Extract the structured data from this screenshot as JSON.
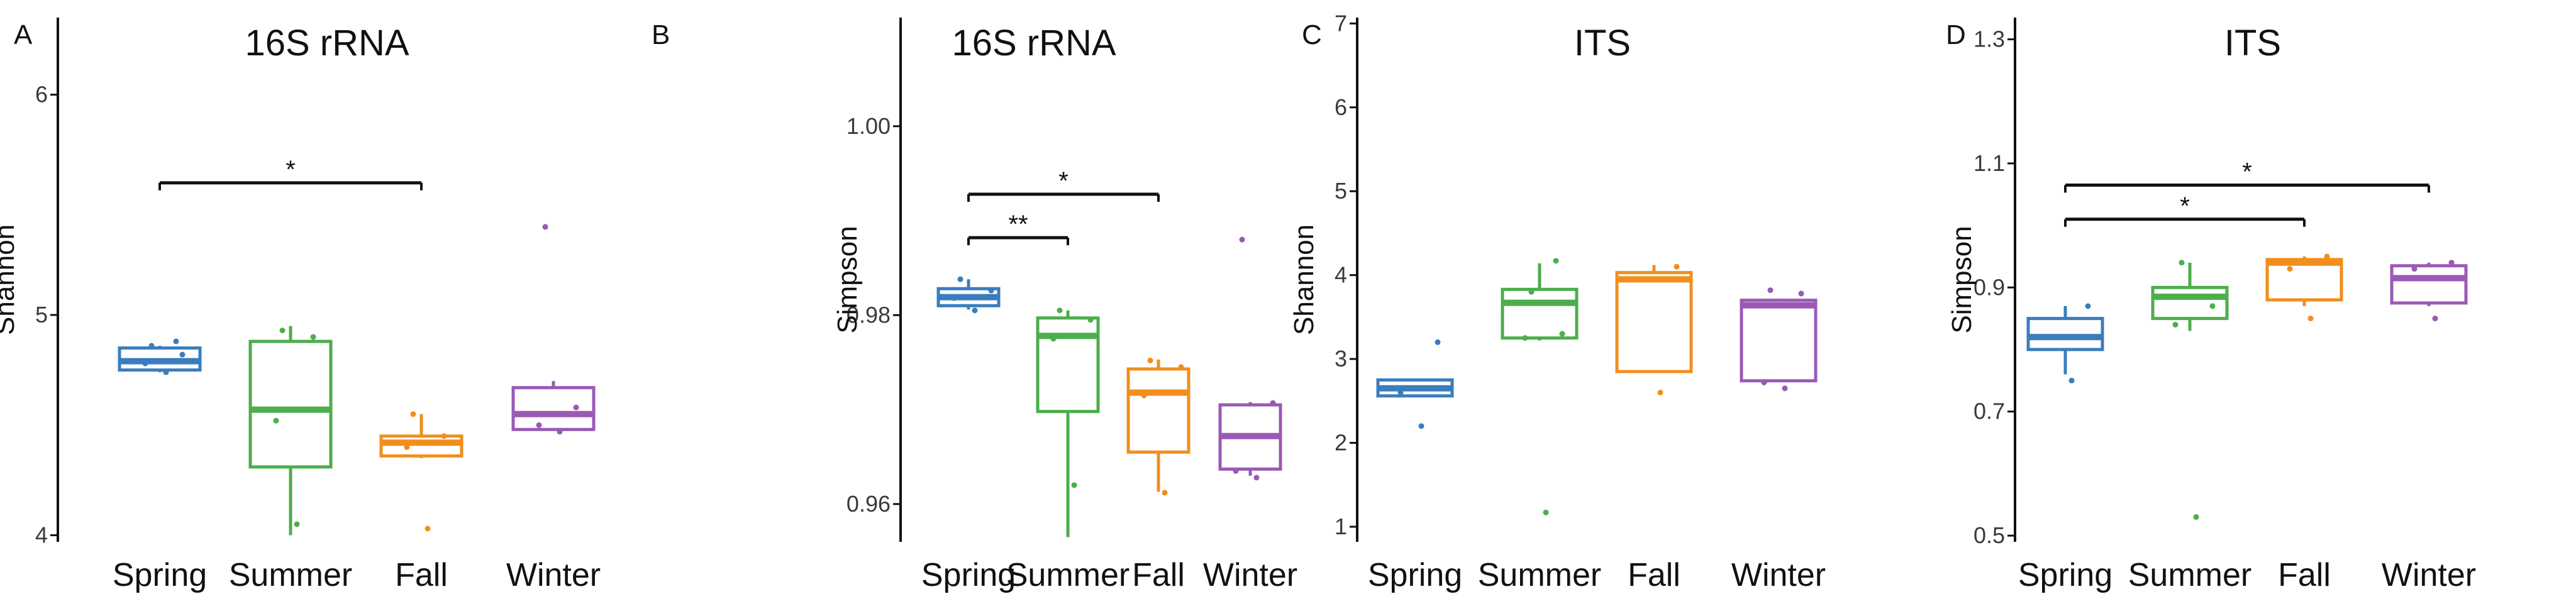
{
  "chart_data": [
    {
      "panel": "A",
      "type": "box",
      "title": "16S rRNA",
      "ylabel": "Shannon",
      "xlabel": "",
      "ylim": [
        3.97,
        6.35
      ],
      "yticks": [
        "4",
        "5",
        "6"
      ],
      "categories": [
        "Spring",
        "Summer",
        "Fall",
        "Winter"
      ],
      "colors": [
        "#3a7dbd",
        "#4cae4c",
        "#f28e1c",
        "#9b59b6"
      ],
      "boxes": [
        {
          "category": "Spring",
          "min": 4.74,
          "q1": 4.75,
          "median": 4.79,
          "q3": 4.85,
          "max": 4.86,
          "points": [
            4.74,
            4.78,
            4.82,
            4.86,
            4.88
          ]
        },
        {
          "category": "Summer",
          "min": 4.0,
          "q1": 4.31,
          "median": 4.57,
          "q3": 4.88,
          "max": 4.95,
          "points": [
            4.05,
            4.52,
            4.9,
            4.93
          ]
        },
        {
          "category": "Fall",
          "min": 4.35,
          "q1": 4.36,
          "median": 4.42,
          "q3": 4.45,
          "max": 4.55,
          "points": [
            4.03,
            4.4,
            4.45,
            4.55
          ]
        },
        {
          "category": "Winter",
          "min": 4.48,
          "q1": 4.48,
          "median": 4.55,
          "q3": 4.67,
          "max": 4.7,
          "points": [
            4.47,
            4.5,
            4.58,
            5.4
          ]
        }
      ],
      "significance": [
        {
          "from": "Spring",
          "to": "Fall",
          "y": 5.6,
          "label": "*"
        }
      ]
    },
    {
      "panel": "B",
      "type": "box",
      "title": "16S rRNA",
      "ylabel": "Simpson",
      "xlabel": "",
      "ylim": [
        0.956,
        1.0115
      ],
      "yticks": [
        "0.96",
        "0.98",
        "1.00"
      ],
      "categories": [
        "Spring",
        "Summer",
        "Fall",
        "Winter"
      ],
      "colors": [
        "#3a7dbd",
        "#4cae4c",
        "#f28e1c",
        "#9b59b6"
      ],
      "boxes": [
        {
          "category": "Spring",
          "min": 0.9806,
          "q1": 0.981,
          "median": 0.9819,
          "q3": 0.9828,
          "max": 0.9838,
          "points": [
            0.9805,
            0.9818,
            0.9826,
            0.9838
          ]
        },
        {
          "category": "Summer",
          "min": 0.9565,
          "q1": 0.9698,
          "median": 0.9778,
          "q3": 0.9797,
          "max": 0.9805,
          "points": [
            0.962,
            0.9775,
            0.9795,
            0.9805
          ]
        },
        {
          "category": "Fall",
          "min": 0.9613,
          "q1": 0.9655,
          "median": 0.9718,
          "q3": 0.9743,
          "max": 0.9753,
          "points": [
            0.9612,
            0.9715,
            0.9745,
            0.9752
          ]
        },
        {
          "category": "Winter",
          "min": 0.963,
          "q1": 0.9637,
          "median": 0.9672,
          "q3": 0.9705,
          "max": 0.9708,
          "points": [
            0.9628,
            0.9635,
            0.9707,
            0.988
          ]
        }
      ],
      "significance": [
        {
          "from": "Spring",
          "to": "Summer",
          "y": 0.9882,
          "label": "**"
        },
        {
          "from": "Spring",
          "to": "Fall",
          "y": 0.9928,
          "label": "*"
        }
      ]
    },
    {
      "panel": "C",
      "type": "box",
      "title": "ITS",
      "ylabel": "Shannon",
      "xlabel": "",
      "ylim": [
        0.82,
        7.07
      ],
      "yticks": [
        "1",
        "2",
        "3",
        "4",
        "5",
        "6",
        "7"
      ],
      "categories": [
        "Spring",
        "Summer",
        "Fall",
        "Winter"
      ],
      "colors": [
        "#3a7dbd",
        "#4cae4c",
        "#f28e1c",
        "#9b59b6"
      ],
      "boxes": [
        {
          "category": "Spring",
          "min": 2.55,
          "q1": 2.56,
          "median": 2.65,
          "q3": 2.75,
          "max": 2.76,
          "points": [
            2.2,
            2.6,
            3.2
          ]
        },
        {
          "category": "Summer",
          "min": 3.22,
          "q1": 3.25,
          "median": 3.67,
          "q3": 3.83,
          "max": 4.14,
          "points": [
            1.17,
            3.25,
            3.3,
            3.8,
            4.17
          ]
        },
        {
          "category": "Fall",
          "min": 2.84,
          "q1": 2.85,
          "median": 3.95,
          "q3": 4.03,
          "max": 4.12,
          "points": [
            2.6,
            3.95,
            4.1
          ]
        },
        {
          "category": "Winter",
          "min": 2.73,
          "q1": 2.74,
          "median": 3.64,
          "q3": 3.7,
          "max": 3.72,
          "points": [
            2.65,
            2.72,
            3.78,
            3.82
          ]
        }
      ],
      "significance": []
    },
    {
      "panel": "D",
      "type": "box",
      "title": "ITS",
      "ylabel": "Simpson",
      "xlabel": "",
      "ylim": [
        0.49,
        1.335
      ],
      "yticks": [
        "0.5",
        "0.7",
        "0.9",
        "1.1",
        "1.3"
      ],
      "categories": [
        "Spring",
        "Summer",
        "Fall",
        "Winter"
      ],
      "colors": [
        "#3a7dbd",
        "#4cae4c",
        "#f28e1c",
        "#9b59b6"
      ],
      "boxes": [
        {
          "category": "Spring",
          "min": 0.76,
          "q1": 0.8,
          "median": 0.82,
          "q3": 0.85,
          "max": 0.87,
          "points": [
            0.75,
            0.82,
            0.87
          ]
        },
        {
          "category": "Summer",
          "min": 0.83,
          "q1": 0.85,
          "median": 0.885,
          "q3": 0.9,
          "max": 0.94,
          "points": [
            0.53,
            0.84,
            0.87,
            0.94
          ]
        },
        {
          "category": "Fall",
          "min": 0.87,
          "q1": 0.88,
          "median": 0.94,
          "q3": 0.945,
          "max": 0.95,
          "points": [
            0.85,
            0.93,
            0.95
          ]
        },
        {
          "category": "Winter",
          "min": 0.87,
          "q1": 0.875,
          "median": 0.915,
          "q3": 0.935,
          "max": 0.94,
          "points": [
            0.85,
            0.93,
            0.94
          ]
        }
      ],
      "significance": [
        {
          "from": "Spring",
          "to": "Fall",
          "y": 1.01,
          "label": "*"
        },
        {
          "from": "Spring",
          "to": "Winter",
          "y": 1.065,
          "label": "*"
        }
      ]
    }
  ]
}
